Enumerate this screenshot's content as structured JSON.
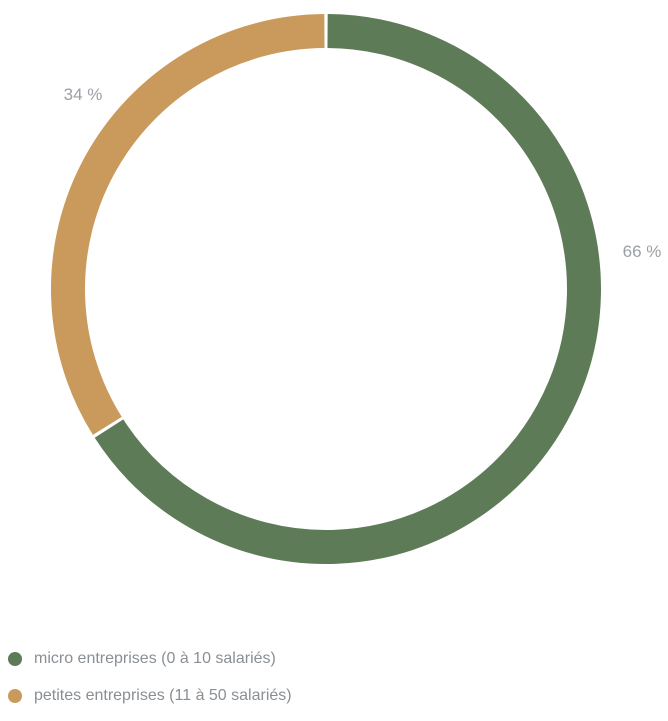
{
  "chart_data": {
    "type": "pie",
    "variant": "donut",
    "title": "",
    "slices": [
      {
        "name": "micro entreprises (0 à 10 salariés)",
        "value": 66,
        "label": "66 %",
        "color": "#5e7b58"
      },
      {
        "name": "petites entreprises (11 à 50 salariés)",
        "value": 34,
        "label": "34 %",
        "color": "#c99a5b"
      }
    ],
    "legend_position": "bottom-left"
  }
}
